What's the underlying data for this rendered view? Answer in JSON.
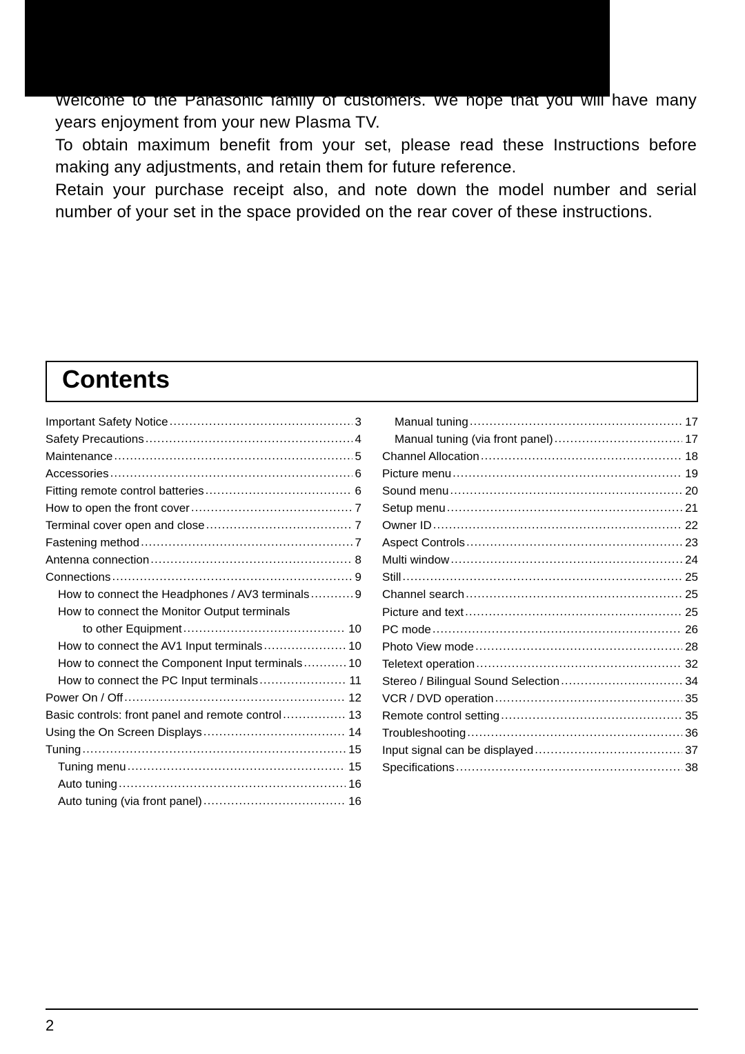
{
  "colors": {
    "text": "#000000",
    "background": "#ffffff",
    "bar": "#000000"
  },
  "intro": {
    "p1": "Welcome to the Panasonic family of customers. We hope that you will have many years enjoyment from your new Plasma TV.",
    "p2": "To obtain maximum benefit from your set, please read these Instructions before making any adjustments, and retain them for future reference.",
    "p3": "Retain your purchase receipt also, and note down the model number and serial number of your set in the space provided on the rear cover of these instructions."
  },
  "contents_heading": "Contents",
  "page_number": "2",
  "toc_left": [
    {
      "label": "Important Safety Notice",
      "page": "3",
      "indent": 0
    },
    {
      "label": "Safety Precautions",
      "page": "4",
      "indent": 0
    },
    {
      "label": "Maintenance",
      "page": "5",
      "indent": 0
    },
    {
      "label": "Accessories",
      "page": "6",
      "indent": 0
    },
    {
      "label": "Fitting remote control batteries",
      "page": "6",
      "indent": 0
    },
    {
      "label": "How to open the front cover",
      "page": "7",
      "indent": 0
    },
    {
      "label": "Terminal cover open and close",
      "page": "7",
      "indent": 0
    },
    {
      "label": "Fastening method",
      "page": "7",
      "indent": 0
    },
    {
      "label": "Antenna connection",
      "page": "8",
      "indent": 0
    },
    {
      "label": "Connections",
      "page": "9",
      "indent": 0
    },
    {
      "label": "How to connect the Headphones / AV3 terminals",
      "page": "9",
      "indent": 1
    },
    {
      "label": "How to connect the Monitor Output terminals",
      "page": "",
      "indent": 1,
      "nodots": true
    },
    {
      "label": "to other Equipment",
      "page": "10",
      "indent": 2
    },
    {
      "label": "How to connect the AV1 Input terminals",
      "page": "10",
      "indent": 1
    },
    {
      "label": "How to connect the Component Input terminals",
      "page": "10",
      "indent": 1
    },
    {
      "label": "How to connect the PC Input terminals",
      "page": "11",
      "indent": 1
    },
    {
      "label": "Power On / Off",
      "page": "12",
      "indent": 0
    },
    {
      "label": "Basic controls: front panel and remote control",
      "page": "13",
      "indent": 0
    },
    {
      "label": "Using the On Screen Displays",
      "page": "14",
      "indent": 0
    },
    {
      "label": "Tuning",
      "page": "15",
      "indent": 0
    },
    {
      "label": "Tuning menu",
      "page": "15",
      "indent": 1
    },
    {
      "label": "Auto tuning",
      "page": "16",
      "indent": 1
    },
    {
      "label": "Auto tuning (via front panel)",
      "page": "16",
      "indent": 1
    }
  ],
  "toc_right": [
    {
      "label": "Manual tuning",
      "page": "17",
      "indent": 1
    },
    {
      "label": "Manual tuning (via front panel)",
      "page": "17",
      "indent": 1
    },
    {
      "label": "Channel Allocation",
      "page": "18",
      "indent": 0
    },
    {
      "label": "Picture menu",
      "page": "19",
      "indent": 0
    },
    {
      "label": "Sound menu",
      "page": "20",
      "indent": 0
    },
    {
      "label": "Setup menu",
      "page": "21",
      "indent": 0
    },
    {
      "label": "Owner ID",
      "page": "22",
      "indent": 0
    },
    {
      "label": "Aspect Controls",
      "page": "23",
      "indent": 0
    },
    {
      "label": "Multi window",
      "page": "24",
      "indent": 0
    },
    {
      "label": "Still",
      "page": "25",
      "indent": 0
    },
    {
      "label": "Channel search",
      "page": "25",
      "indent": 0
    },
    {
      "label": "Picture and text",
      "page": "25",
      "indent": 0
    },
    {
      "label": "PC mode",
      "page": "26",
      "indent": 0
    },
    {
      "label": "Photo View mode",
      "page": "28",
      "indent": 0
    },
    {
      "label": "Teletext operation",
      "page": "32",
      "indent": 0
    },
    {
      "label": "Stereo / Bilingual Sound Selection",
      "page": "34",
      "indent": 0
    },
    {
      "label": "VCR / DVD operation",
      "page": "35",
      "indent": 0
    },
    {
      "label": "Remote control setting",
      "page": "35",
      "indent": 0
    },
    {
      "label": "Troubleshooting",
      "page": "36",
      "indent": 0
    },
    {
      "label": "Input signal can be displayed",
      "page": "37",
      "indent": 0
    },
    {
      "label": "Specifications",
      "page": "38",
      "indent": 0
    }
  ]
}
